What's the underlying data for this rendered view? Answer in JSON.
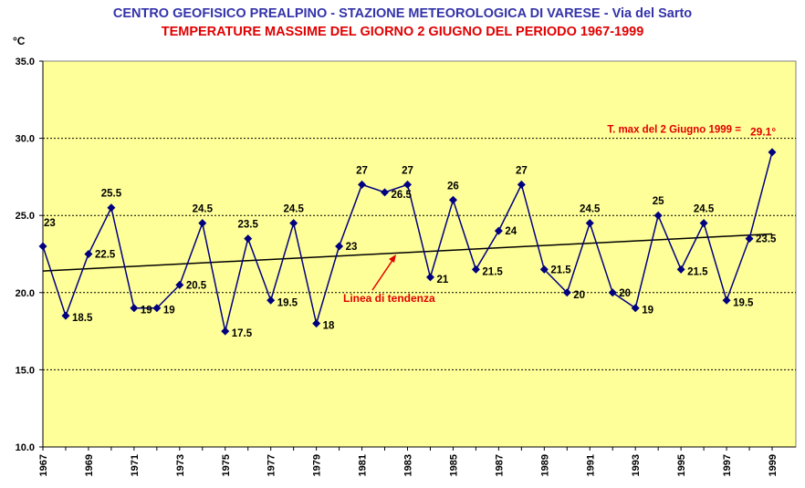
{
  "header": {
    "title": "CENTRO GEOFISICO PREALPINO - STAZIONE METEOROLOGICA DI VARESE - Via del Sarto",
    "subtitle": "TEMPERATURE MASSIME DEL GIORNO 2 GIUGNO DEL PERIODO 1967-1999",
    "unit": "°C"
  },
  "colors": {
    "plot_background": "#ffff99",
    "series": "#000080",
    "trend": "#000000",
    "annotation": "#e00000"
  },
  "chart_data": {
    "type": "line",
    "title": "TEMPERATURE MASSIME DEL GIORNO 2 GIUGNO DEL PERIODO 1967-1999",
    "ylabel": "°C",
    "ylim": [
      10,
      35
    ],
    "y_ticks": [
      "10.0",
      "15.0",
      "20.0",
      "25.0",
      "30.0",
      "35.0"
    ],
    "x_ticks": [
      "1967",
      "1969",
      "1971",
      "1973",
      "1975",
      "1977",
      "1979",
      "1981",
      "1983",
      "1985",
      "1987",
      "1989",
      "1991",
      "1993",
      "1995",
      "1997",
      "1999"
    ],
    "grid": "horizontal dashed",
    "legend": "none",
    "x": [
      1967,
      1968,
      1969,
      1970,
      1971,
      1972,
      1973,
      1974,
      1975,
      1976,
      1977,
      1978,
      1979,
      1980,
      1981,
      1982,
      1983,
      1984,
      1985,
      1986,
      1987,
      1988,
      1989,
      1990,
      1991,
      1992,
      1993,
      1994,
      1995,
      1996,
      1997,
      1998,
      1999
    ],
    "series": [
      {
        "values": [
          23,
          18.5,
          22.5,
          25.5,
          19,
          19,
          20.5,
          24.5,
          17.5,
          23.5,
          19.5,
          24.5,
          18,
          23,
          27,
          26.5,
          27,
          21,
          26,
          21.5,
          24,
          27,
          21.5,
          20,
          24.5,
          20,
          19,
          25,
          21.5,
          24.5,
          19.5,
          23.5,
          29.1
        ],
        "labels": [
          "23",
          "18.5",
          "22.5",
          "25.5",
          "19",
          "19",
          "20.5",
          "24.5",
          "17.5",
          "23.5",
          "19.5",
          "24.5",
          "18",
          "23",
          "27",
          "26.5",
          "27",
          "21",
          "26",
          "21.5",
          "24",
          "27",
          "21.5",
          "20",
          "24.5",
          "20",
          "19",
          "25",
          "21.5",
          "24.5",
          "19.5",
          "23.5",
          ""
        ]
      }
    ],
    "trend": {
      "label": "Linea di tendenza",
      "start": [
        1967,
        21.4
      ],
      "end": [
        1999,
        23.8
      ]
    },
    "annotations": [
      {
        "text": "T. max del 2 Giugno 1999 =",
        "value_text": "29.1°"
      }
    ]
  }
}
